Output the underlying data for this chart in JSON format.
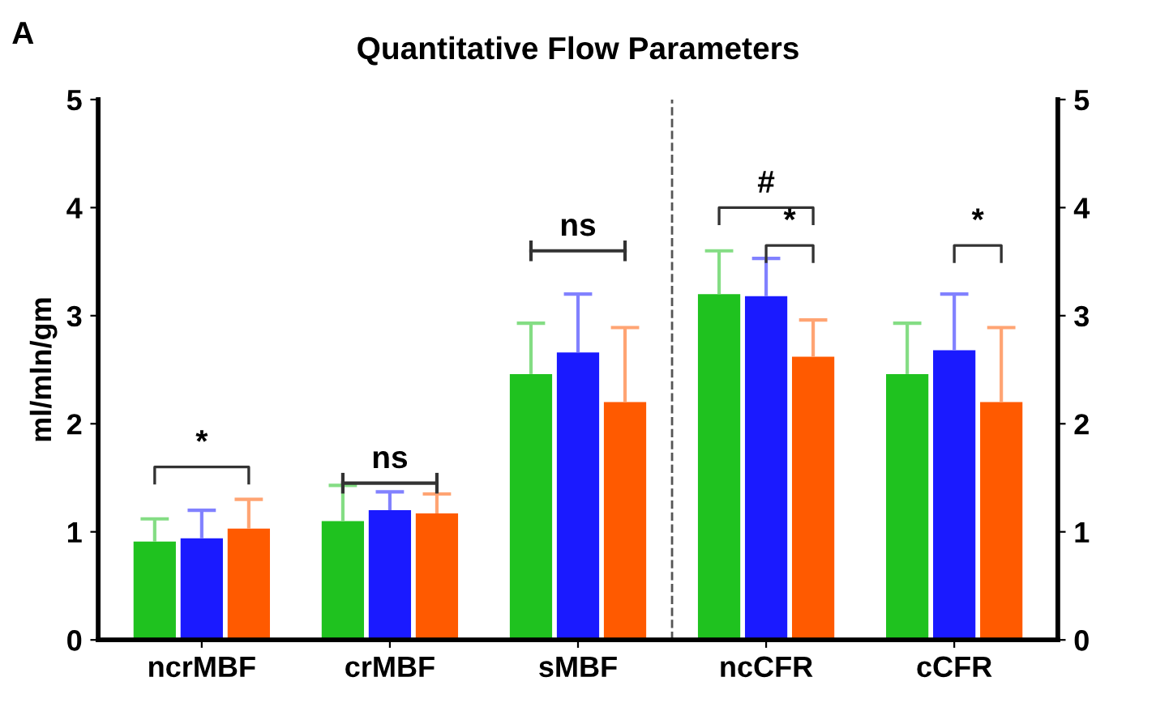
{
  "chart_data": {
    "type": "bar",
    "title": "Quantitative Flow Parameters",
    "ylabel": "ml/mln/gm",
    "categories": [
      "ncrMBF",
      "crMBF",
      "sMBF",
      "ncCFR",
      "cCFR"
    ],
    "series": [
      {
        "color": "#1fc21f",
        "values": [
          0.91,
          1.1,
          2.46,
          3.2,
          2.46
        ],
        "errors": [
          [
            0.91,
            1.12
          ],
          [
            1.1,
            1.43
          ],
          [
            2.46,
            2.93
          ],
          [
            3.2,
            3.6
          ],
          [
            2.46,
            2.93
          ]
        ]
      },
      {
        "color": "#1a1aff",
        "values": [
          0.94,
          1.2,
          2.66,
          3.18,
          2.68
        ],
        "errors": [
          [
            0.94,
            1.2
          ],
          [
            1.2,
            1.37
          ],
          [
            2.66,
            3.2
          ],
          [
            3.18,
            3.53
          ],
          [
            2.68,
            3.2
          ]
        ]
      },
      {
        "color": "#ff5a00",
        "values": [
          1.03,
          1.17,
          2.2,
          2.62,
          2.2
        ],
        "errors": [
          [
            1.03,
            1.3
          ],
          [
            1.17,
            1.35
          ],
          [
            2.2,
            2.89
          ],
          [
            2.62,
            2.96
          ],
          [
            2.2,
            2.89
          ]
        ]
      }
    ],
    "ylim": [
      0,
      5
    ],
    "yticks": [
      0,
      1,
      2,
      3,
      4,
      5
    ],
    "y2lim": [
      0,
      5
    ],
    "y2ticks": [
      0,
      1,
      2,
      3,
      4,
      5
    ],
    "annotations": [
      "A",
      "*",
      "ns",
      "ns",
      "#",
      "*",
      "*"
    ],
    "grid": false,
    "legend": false
  }
}
